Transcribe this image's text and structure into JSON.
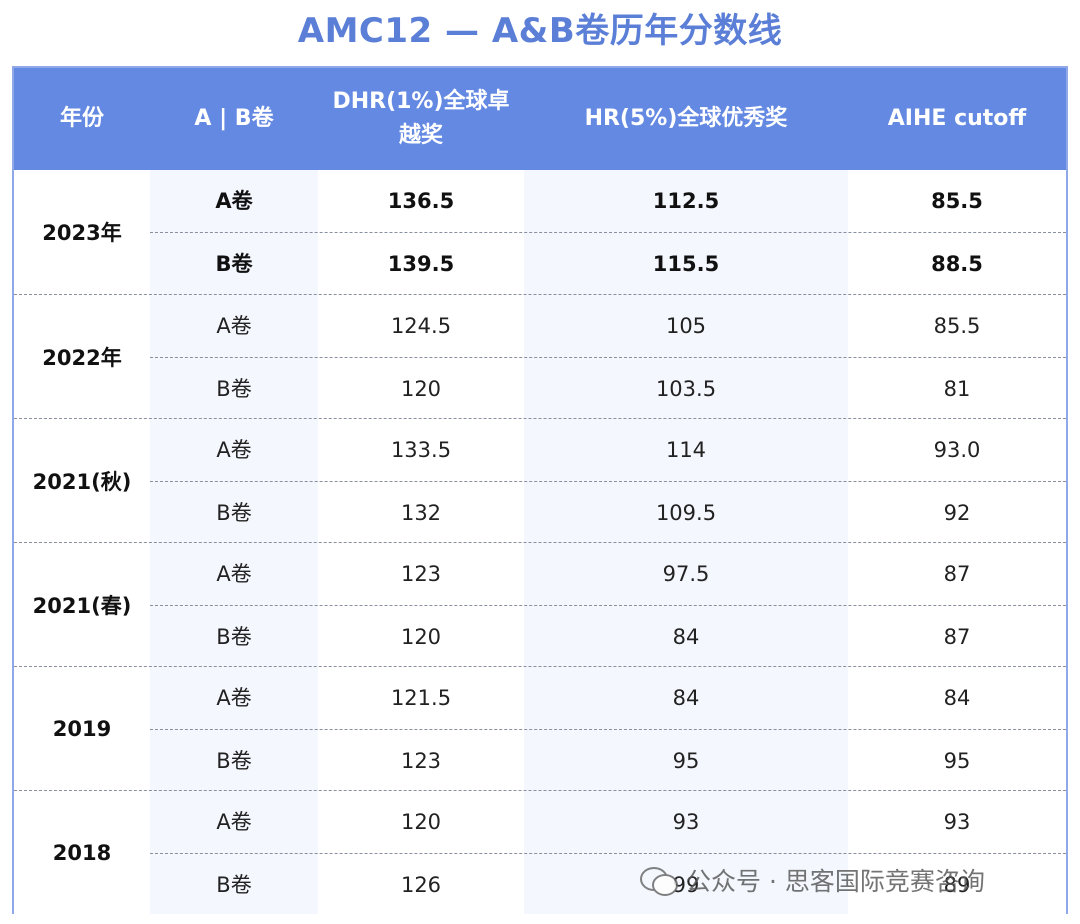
{
  "title": "AMC12 — A&B卷历年分数线",
  "headers": {
    "year": "年份",
    "paper": "A | B卷",
    "dhr": "DHR(1%)全球卓越奖",
    "hr": "HR(5%)全球优秀奖",
    "aihe": "AIHE cutoff"
  },
  "rows": [
    {
      "year": "2023年",
      "bold": true,
      "entries": [
        {
          "paper": "A卷",
          "dhr": "136.5",
          "hr": "112.5",
          "aihe": "85.5"
        },
        {
          "paper": "B卷",
          "dhr": "139.5",
          "hr": "115.5",
          "aihe": "88.5"
        }
      ]
    },
    {
      "year": "2022年",
      "bold": false,
      "entries": [
        {
          "paper": "A卷",
          "dhr": "124.5",
          "hr": "105",
          "aihe": "85.5"
        },
        {
          "paper": "B卷",
          "dhr": "120",
          "hr": "103.5",
          "aihe": "81"
        }
      ]
    },
    {
      "year": "2021(秋)",
      "bold": false,
      "entries": [
        {
          "paper": "A卷",
          "dhr": "133.5",
          "hr": "114",
          "aihe": "93.0"
        },
        {
          "paper": "B卷",
          "dhr": "132",
          "hr": "109.5",
          "aihe": "92"
        }
      ]
    },
    {
      "year": "2021(春)",
      "bold": false,
      "entries": [
        {
          "paper": "A卷",
          "dhr": "123",
          "hr": "97.5",
          "aihe": "87"
        },
        {
          "paper": "B卷",
          "dhr": "120",
          "hr": "84",
          "aihe": "87"
        }
      ]
    },
    {
      "year": "2019",
      "bold": false,
      "entries": [
        {
          "paper": "A卷",
          "dhr": "121.5",
          "hr": "84",
          "aihe": "84"
        },
        {
          "paper": "B卷",
          "dhr": "123",
          "hr": "95",
          "aihe": "95"
        }
      ]
    },
    {
      "year": "2018",
      "bold": false,
      "entries": [
        {
          "paper": "A卷",
          "dhr": "120",
          "hr": "93",
          "aihe": "93"
        },
        {
          "paper": "B卷",
          "dhr": "126",
          "hr": "99",
          "aihe": "89"
        }
      ]
    }
  ],
  "watermark": {
    "text": "公众号 · 思客国际竞赛咨询",
    "icon": "wechat-icon"
  },
  "colors": {
    "title": "#5b7fd6",
    "header_bg": "#6489e2",
    "stripe": "#f4f7fd",
    "border": "#8fa8e8"
  }
}
